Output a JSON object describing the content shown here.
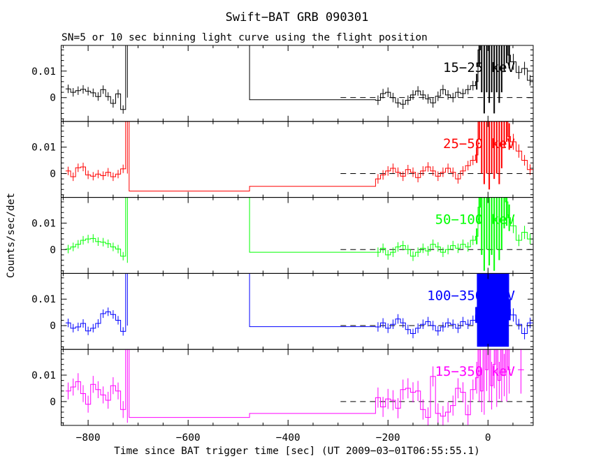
{
  "chart_data": {
    "type": "line",
    "title": "Swift−BAT GRB 090301",
    "subtitle": "SN=5 or 10 sec binning light curve using the flight position",
    "xlabel": "Time since BAT trigger time [sec] (UT 2009−03−01T06:55:55.1)",
    "ylabel": "Counts/sec/det",
    "xlim": [
      -854,
      90.5
    ],
    "panel_ylim": [
      -0.009,
      0.0197
    ],
    "x_axis": {
      "major_ticks": [
        {
          "value": -800,
          "label": "−800"
        },
        {
          "value": -600,
          "label": "−600"
        },
        {
          "value": -400,
          "label": "−400"
        },
        {
          "value": -200,
          "label": "−200"
        },
        {
          "value": 0,
          "label": "0"
        }
      ],
      "minor_step": 50
    },
    "y_axis": {
      "major_ticks": [
        {
          "value": 0,
          "label": "0"
        },
        {
          "value": 0.01,
          "label": "0.01"
        }
      ],
      "minor_step": 0.002
    },
    "zero_dash_start": -295,
    "grid": false,
    "panels": [
      {
        "label": "15−25 keV",
        "color": "#000000",
        "segments": [
          {
            "t0": -845,
            "dt": 10,
            "v": [
              0.0033,
              0.002,
              0.0026,
              0.0031,
              0.0024,
              0.0018,
              0.0004,
              0.003,
              0.0004,
              -0.0022,
              0.0014,
              -0.0045
            ],
            "e": 0.0016
          },
          {
            "t0": -725,
            "dt": 7,
            "v": [
              0.05
            ],
            "e": [
              0.05
            ]
          },
          {
            "t0": -718,
            "dt": 241,
            "v": [
              0.05
            ],
            "e": [
              0
            ]
          },
          {
            "t0": -477,
            "dt": 252,
            "v": [
              -0.0008
            ],
            "e": [
              0
            ]
          },
          {
            "t0": -225,
            "dt": 10,
            "v": [
              -0.001,
              0.0015,
              0.002,
              0,
              -0.002,
              -0.0025,
              -0.001,
              0.001,
              0.0025,
              0.001,
              -0.0005,
              -0.002,
              0.0005,
              0.003,
              0.001,
              0,
              0.002,
              0.0015,
              0.003,
              0.0045
            ],
            "e": 0.0018
          },
          {
            "t0": -25,
            "dt": 5,
            "lw": 2,
            "v": [
              0.006,
              0.018,
              0.05,
              0.05,
              0.05,
              0.05,
              0.05,
              0.05,
              0.05,
              0.05,
              0.05,
              0.04,
              0.025,
              0.016
            ],
            "e": [
              0.003,
              0.006,
              0.048,
              0.056,
              0.048,
              0.052,
              0.048,
              0.056,
              0.048,
              0.052,
              0.048,
              0.03,
              0.012,
              0.005
            ]
          },
          {
            "t0": 45,
            "dt": 11.25,
            "v": [
              0.0135,
              0.0095,
              0.011,
              0.0065
            ],
            "e": [
              0.003,
              0.0025,
              0.0025,
              0.002
            ]
          }
        ]
      },
      {
        "label": "25−50 keV",
        "color": "#ff0000",
        "segments": [
          {
            "t0": -845,
            "dt": 10,
            "v": [
              0.001,
              -0.0012,
              0.0022,
              0.0025,
              -0.0005,
              -0.001,
              -0.0002,
              -0.0008,
              0.0005,
              -0.0012,
              -0.0002,
              0.0018
            ],
            "e": 0.0016
          },
          {
            "t0": -725,
            "dt": 7,
            "v": [
              0.05
            ],
            "e": [
              0.05
            ]
          },
          {
            "t0": -718,
            "dt": 241,
            "v": [
              -0.0066
            ],
            "e": [
              0
            ]
          },
          {
            "t0": -477,
            "dt": 252,
            "v": [
              -0.0048
            ],
            "e": [
              0
            ]
          },
          {
            "t0": -225,
            "dt": 10,
            "v": [
              -0.002,
              -0.0005,
              0.001,
              0.002,
              0.0005,
              -0.001,
              0.0015,
              0.0005,
              -0.0015,
              0.001,
              0.0025,
              0.001,
              -0.001,
              0.0005,
              0.002,
              0.0005,
              -0.002,
              0.001,
              0.003,
              0.005
            ],
            "e": 0.0018
          },
          {
            "t0": -25,
            "dt": 5,
            "lw": 2,
            "v": [
              0.007,
              0.02,
              0.05,
              0.05,
              0.05,
              0.05,
              0.05,
              0.05,
              0.05,
              0.05,
              0.05,
              0.035,
              0.022,
              0.014
            ],
            "e": [
              0.003,
              0.007,
              0.05,
              0.054,
              0.05,
              0.056,
              0.05,
              0.052,
              0.05,
              0.054,
              0.048,
              0.025,
              0.01,
              0.005
            ]
          },
          {
            "t0": 45,
            "dt": 11.25,
            "v": [
              0.012,
              0.0085,
              0.005,
              0.0015
            ],
            "e": [
              0.003,
              0.0025,
              0.002,
              0.002
            ]
          }
        ]
      },
      {
        "label": "50−100 keV",
        "color": "#00ff00",
        "segments": [
          {
            "t0": -845,
            "dt": 10,
            "v": [
              0.0002,
              0.001,
              0.002,
              0.0035,
              0.004,
              0.0042,
              0.003,
              0.0028,
              0.0022,
              0.001,
              0.0002,
              -0.0025
            ],
            "e": 0.0016
          },
          {
            "t0": -725,
            "dt": 7,
            "v": [
              0.05
            ],
            "e": [
              0.055
            ]
          },
          {
            "t0": -718,
            "dt": 241,
            "v": [
              0.05
            ],
            "e": [
              0
            ]
          },
          {
            "t0": -477,
            "dt": 252,
            "v": [
              -0.001
            ],
            "e": [
              0
            ]
          },
          {
            "t0": -225,
            "dt": 10,
            "v": [
              -0.001,
              0.0005,
              -0.002,
              -0.001,
              0.001,
              0.0015,
              0,
              -0.0025,
              -0.001,
              0.0005,
              -0.0005,
              0.002,
              0.001,
              -0.001,
              0,
              0.0015,
              0.0005,
              0.002,
              0.001,
              0.0035
            ],
            "e": 0.0018
          },
          {
            "t0": -25,
            "dt": 5,
            "lw": 2,
            "v": [
              0.005,
              0.016,
              0.05,
              0.05,
              0.05,
              0.05,
              0.05,
              0.05,
              0.05,
              0.05,
              0.05,
              0.03,
              0.018,
              0.012
            ],
            "e": [
              0.003,
              0.006,
              0.052,
              0.058,
              0.05,
              0.056,
              0.052,
              0.058,
              0.05,
              0.054,
              0.05,
              0.022,
              0.009,
              0.005
            ]
          },
          {
            "t0": 45,
            "dt": 11.25,
            "v": [
              0.009,
              0.0035,
              0.0065,
              0.004
            ],
            "e": [
              0.0028,
              0.0022,
              0.0025,
              0.002
            ]
          }
        ]
      },
      {
        "label": "100−350 keV",
        "color": "#0000ff",
        "segments": [
          {
            "t0": -845,
            "dt": 10,
            "v": [
              0.001,
              -0.001,
              -0.0005,
              0.0008,
              -0.002,
              -0.001,
              0.0008,
              0.0045,
              0.0052,
              0.0042,
              0.002,
              -0.0022
            ],
            "e": 0.0016
          },
          {
            "t0": -725,
            "dt": 7,
            "v": [
              0.05
            ],
            "e": [
              0.05
            ]
          },
          {
            "t0": -718,
            "dt": 241,
            "v": [
              0.05
            ],
            "e": [
              0
            ]
          },
          {
            "t0": -477,
            "dt": 252,
            "v": [
              -0.0004
            ],
            "e": [
              0
            ]
          },
          {
            "t0": -225,
            "dt": 10,
            "v": [
              -0.0005,
              0.001,
              -0.001,
              0.0005,
              0.0025,
              0.001,
              -0.0015,
              -0.003,
              -0.001,
              0.0005,
              0.0015,
              0,
              -0.002,
              -0.0005,
              0.001,
              0.0005,
              -0.001,
              0.0015,
              0.0005,
              0.002
            ],
            "e": 0.0018
          },
          {
            "t0": -25,
            "dt": 3.5,
            "lw": 3,
            "v": [
              0.004,
              0.05,
              0.05,
              0.05,
              0.05,
              0.05,
              0.05,
              0.05,
              0.05,
              0.05,
              0.05,
              0.05,
              0.05,
              0.05,
              0.05,
              0.05,
              0.05,
              0.05,
              0.05,
              0.006
            ],
            "e": [
              0.003,
              0.058,
              0.058,
              0.058,
              0.058,
              0.058,
              0.058,
              0.058,
              0.058,
              0.058,
              0.058,
              0.058,
              0.058,
              0.058,
              0.058,
              0.058,
              0.058,
              0.058,
              0.058,
              0.004
            ]
          },
          {
            "t0": 45,
            "dt": 11.25,
            "v": [
              0.004,
              0.0005,
              -0.003,
              0.001
            ],
            "e": [
              0.0025,
              0.002,
              0.0022,
              0.002
            ]
          }
        ]
      },
      {
        "label": "15−350 keV",
        "color": "#ff00ff",
        "segments": [
          {
            "t0": -845,
            "dt": 10,
            "v": [
              0.004,
              0.0055,
              0.0075,
              0.003,
              -0.001,
              0.0065,
              0.0045,
              0.0025,
              0.0005,
              0.006,
              0.004,
              -0.003
            ],
            "e": 0.0032
          },
          {
            "t0": -725,
            "dt": 7,
            "v": [
              0.05
            ],
            "e": [
              0.058
            ]
          },
          {
            "t0": -718,
            "dt": 241,
            "v": [
              -0.006
            ],
            "e": [
              0
            ]
          },
          {
            "t0": -477,
            "dt": 252,
            "v": [
              -0.0045
            ],
            "e": [
              0
            ]
          },
          {
            "t0": -225,
            "dt": 10,
            "v": [
              0.0015,
              -0.002,
              0.001,
              0.0005,
              -0.0025,
              0.0045,
              0.005,
              0.0035,
              0.004,
              -0.003,
              -0.006,
              0.0095,
              -0.0045,
              -0.0055,
              -0.004,
              -0.0015,
              0.005,
              0.0035,
              -0.005,
              0.0045
            ],
            "e": 0.0038
          },
          {
            "t0": -25,
            "dt": 5,
            "v": [
              0.009,
              0.05,
              0.004,
              0.05,
              0.012,
              0.05,
              0.006,
              0.014,
              0.05,
              0.008,
              0.05,
              0.01,
              0.05,
              0.012
            ],
            "e": [
              0.006,
              0.05,
              0.008,
              0.055,
              0.008,
              0.05,
              0.009,
              0.009,
              0.052,
              0.007,
              0.05,
              0.008,
              0.05,
              0.009
            ]
          },
          {
            "t0": 60,
            "dt": 12,
            "v": [
              0.012
            ],
            "e": [
              0.009
            ]
          }
        ]
      }
    ]
  }
}
